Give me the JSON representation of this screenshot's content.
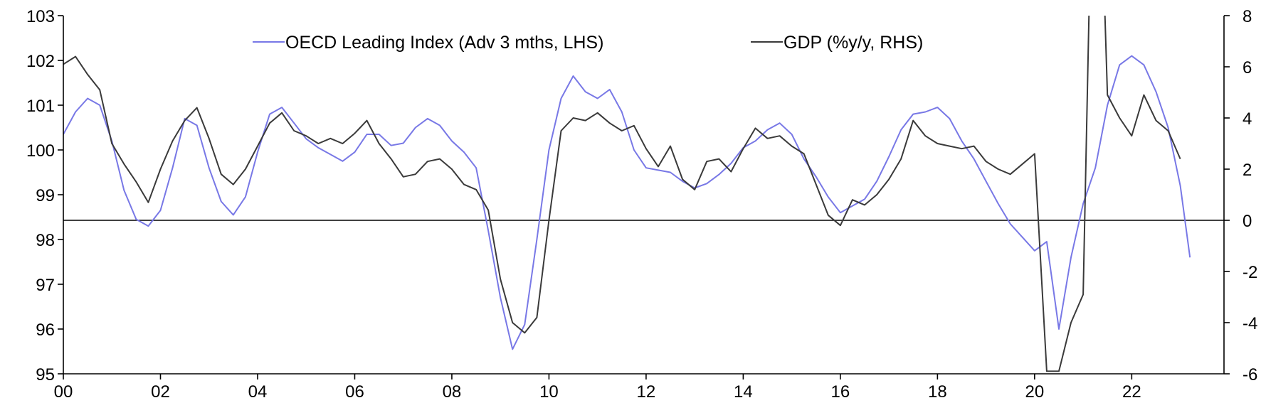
{
  "chart_data": {
    "type": "line",
    "title": "",
    "xlabel": "",
    "ylabel": "",
    "y2label": "",
    "x_tick_labels": [
      "00",
      "02",
      "04",
      "06",
      "08",
      "10",
      "12",
      "14",
      "16",
      "18",
      "20",
      "22"
    ],
    "x_tick_values": [
      2000,
      2002,
      2004,
      2006,
      2008,
      2010,
      2012,
      2014,
      2016,
      2018,
      2020,
      2022
    ],
    "xlim": [
      2000,
      2023.9
    ],
    "ylim_left": [
      95,
      103
    ],
    "ylim_right": [
      -6,
      8
    ],
    "y_left_ticks": [
      95,
      96,
      97,
      98,
      99,
      100,
      101,
      102,
      103
    ],
    "y_right_ticks": [
      -6,
      -4,
      -2,
      0,
      2,
      4,
      6,
      8
    ],
    "zero_line_right": 0,
    "grid": false,
    "legend_position": "top-center",
    "series": [
      {
        "name": "OECD Leading Index (Adv 3 mths, LHS)",
        "axis": "left",
        "color": "#7878e6",
        "x": [
          2000.0,
          2000.25,
          2000.5,
          2000.75,
          2001.0,
          2001.25,
          2001.5,
          2001.75,
          2002.0,
          2002.25,
          2002.5,
          2002.75,
          2003.0,
          2003.25,
          2003.5,
          2003.75,
          2004.0,
          2004.25,
          2004.5,
          2004.75,
          2005.0,
          2005.25,
          2005.5,
          2005.75,
          2006.0,
          2006.25,
          2006.5,
          2006.75,
          2007.0,
          2007.25,
          2007.5,
          2007.75,
          2008.0,
          2008.25,
          2008.5,
          2008.75,
          2009.0,
          2009.25,
          2009.5,
          2009.75,
          2010.0,
          2010.25,
          2010.5,
          2010.75,
          2011.0,
          2011.25,
          2011.5,
          2011.75,
          2012.0,
          2012.25,
          2012.5,
          2012.75,
          2013.0,
          2013.25,
          2013.5,
          2013.75,
          2014.0,
          2014.25,
          2014.5,
          2014.75,
          2015.0,
          2015.25,
          2015.5,
          2015.75,
          2016.0,
          2016.25,
          2016.5,
          2016.75,
          2017.0,
          2017.25,
          2017.5,
          2017.75,
          2018.0,
          2018.25,
          2018.5,
          2018.75,
          2019.0,
          2019.25,
          2019.5,
          2019.75,
          2020.0,
          2020.25,
          2020.5,
          2020.75,
          2021.0,
          2021.25,
          2021.5,
          2021.75,
          2022.0,
          2022.25,
          2022.5,
          2022.75,
          2023.0,
          2023.2
        ],
        "y": [
          100.35,
          100.85,
          101.15,
          101.0,
          100.2,
          99.1,
          98.45,
          98.3,
          98.65,
          99.6,
          100.7,
          100.55,
          99.6,
          98.85,
          98.55,
          98.95,
          99.95,
          100.8,
          100.95,
          100.6,
          100.25,
          100.05,
          99.9,
          99.75,
          99.95,
          100.35,
          100.35,
          100.1,
          100.15,
          100.5,
          100.7,
          100.55,
          100.2,
          99.95,
          99.6,
          98.2,
          96.7,
          95.55,
          96.1,
          98.0,
          100.0,
          101.15,
          101.65,
          101.3,
          101.15,
          101.35,
          100.85,
          100.0,
          99.6,
          99.55,
          99.5,
          99.3,
          99.15,
          99.25,
          99.45,
          99.7,
          100.05,
          100.2,
          100.45,
          100.6,
          100.35,
          99.8,
          99.4,
          98.95,
          98.6,
          98.75,
          98.9,
          99.3,
          99.85,
          100.45,
          100.8,
          100.85,
          100.95,
          100.7,
          100.2,
          99.8,
          99.3,
          98.8,
          98.35,
          98.05,
          97.75,
          97.95,
          96.0,
          97.6,
          98.8,
          99.6,
          101.0,
          101.9,
          102.1,
          101.9,
          101.3,
          100.5,
          99.2,
          97.6
        ]
      },
      {
        "name": "GDP (%y/y, RHS)",
        "axis": "right",
        "color": "#3a3a3a",
        "x": [
          2000.0,
          2000.25,
          2000.5,
          2000.75,
          2001.0,
          2001.25,
          2001.5,
          2001.75,
          2002.0,
          2002.25,
          2002.5,
          2002.75,
          2003.0,
          2003.25,
          2003.5,
          2003.75,
          2004.0,
          2004.25,
          2004.5,
          2004.75,
          2005.0,
          2005.25,
          2005.5,
          2005.75,
          2006.0,
          2006.25,
          2006.5,
          2006.75,
          2007.0,
          2007.25,
          2007.5,
          2007.75,
          2008.0,
          2008.25,
          2008.5,
          2008.75,
          2009.0,
          2009.25,
          2009.5,
          2009.75,
          2010.0,
          2010.25,
          2010.5,
          2010.75,
          2011.0,
          2011.25,
          2011.5,
          2011.75,
          2012.0,
          2012.25,
          2012.5,
          2012.75,
          2013.0,
          2013.25,
          2013.5,
          2013.75,
          2014.0,
          2014.25,
          2014.5,
          2014.75,
          2015.0,
          2015.25,
          2015.5,
          2015.75,
          2016.0,
          2016.25,
          2016.5,
          2016.75,
          2017.0,
          2017.25,
          2017.5,
          2017.75,
          2018.0,
          2018.25,
          2018.5,
          2018.75,
          2019.0,
          2019.25,
          2019.5,
          2019.75,
          2020.0,
          2020.25,
          2020.5,
          2020.75,
          2021.0,
          2021.25,
          2021.5,
          2021.75,
          2022.0,
          2022.25,
          2022.5,
          2022.75,
          2023.0
        ],
        "y": [
          6.1,
          6.4,
          5.7,
          5.1,
          3.0,
          2.2,
          1.5,
          0.7,
          2.0,
          3.1,
          3.9,
          4.4,
          3.2,
          1.8,
          1.4,
          2.0,
          2.9,
          3.8,
          4.2,
          3.5,
          3.3,
          3.0,
          3.2,
          3.0,
          3.4,
          3.9,
          3.0,
          2.4,
          1.7,
          1.8,
          2.3,
          2.4,
          2.0,
          1.4,
          1.2,
          0.4,
          -2.3,
          -4.0,
          -4.4,
          -3.8,
          0.0,
          3.5,
          4.0,
          3.9,
          4.2,
          3.8,
          3.5,
          3.7,
          2.8,
          2.1,
          2.9,
          1.6,
          1.2,
          2.3,
          2.4,
          1.9,
          2.8,
          3.6,
          3.2,
          3.3,
          2.9,
          2.6,
          1.4,
          0.2,
          -0.2,
          0.8,
          0.6,
          1.0,
          1.6,
          2.4,
          3.9,
          3.3,
          3.0,
          2.9,
          2.8,
          2.9,
          2.3,
          2.0,
          1.8,
          2.2,
          2.6,
          -5.9,
          -5.9,
          -4.0,
          -2.9,
          20.0,
          4.9,
          4.0,
          3.3,
          4.9,
          3.9,
          3.5,
          2.4
        ]
      }
    ]
  }
}
